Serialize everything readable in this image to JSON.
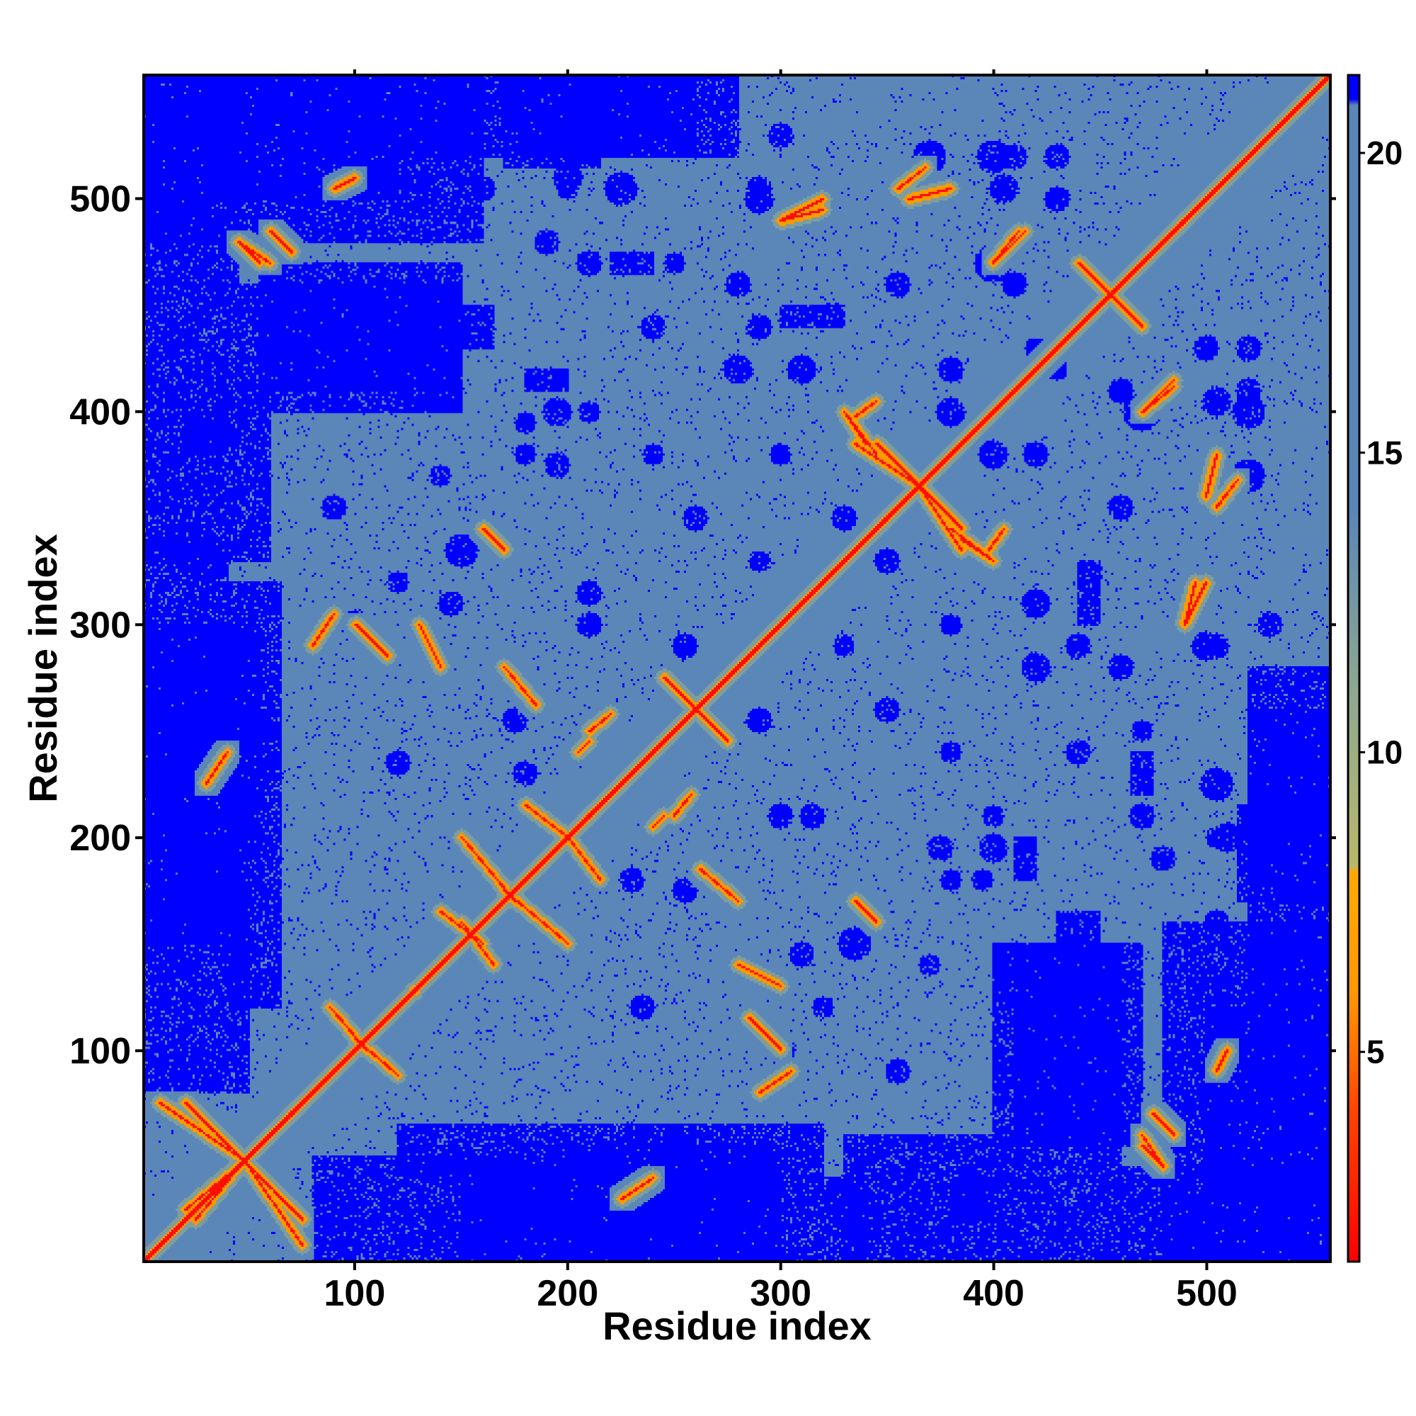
{
  "chart_data": {
    "type": "heatmap",
    "title": "",
    "xlabel": "Residue index",
    "ylabel": "Residue index",
    "xlim": [
      1,
      558
    ],
    "ylim": [
      1,
      558
    ],
    "x_ticks": [
      100,
      200,
      300,
      400,
      500
    ],
    "y_ticks": [
      100,
      200,
      300,
      400,
      500
    ],
    "x_minor_ticks_top": [
      100,
      200,
      300,
      400,
      500
    ],
    "y_minor_ticks_right": [
      100,
      200,
      300,
      400,
      500
    ],
    "grid": false,
    "symmetric": true,
    "colorbar": {
      "position": "right",
      "range": [
        1.5,
        21.3
      ],
      "ticks": [
        5,
        10,
        15,
        20
      ],
      "stops": [
        {
          "value": 1.5,
          "color": "#ff0000"
        },
        {
          "value": 4.0,
          "color": "#ff4400"
        },
        {
          "value": 6.0,
          "color": "#ff9900"
        },
        {
          "value": 8.0,
          "color": "#ffaa00"
        },
        {
          "value": 8.1,
          "color": "#b8b86b"
        },
        {
          "value": 11.0,
          "color": "#8fa890"
        },
        {
          "value": 14.0,
          "color": "#5b86b8"
        },
        {
          "value": 20.8,
          "color": "#5b86b8"
        },
        {
          "value": 20.9,
          "color": "#0000ff"
        },
        {
          "value": 21.3,
          "color": "#0000ff"
        }
      ]
    },
    "value_classes": {
      "diagonal_contact": 2,
      "near_contact": 6,
      "intermediate": 12,
      "background": 17,
      "far": 21
    },
    "contact_segments": [
      [
        5,
        5,
        558,
        558
      ],
      [
        48,
        48,
        60,
        35
      ],
      [
        48,
        48,
        20,
        75
      ],
      [
        48,
        48,
        25,
        20
      ],
      [
        48,
        48,
        75,
        8
      ],
      [
        100,
        105,
        120,
        88
      ],
      [
        150,
        160,
        165,
        140
      ],
      [
        150,
        200,
        175,
        170
      ],
      [
        200,
        200,
        215,
        180
      ],
      [
        210,
        250,
        220,
        258
      ],
      [
        260,
        260,
        275,
        245
      ],
      [
        245,
        210,
        240,
        205
      ],
      [
        170,
        280,
        185,
        262
      ],
      [
        160,
        345,
        170,
        335
      ],
      [
        365,
        365,
        385,
        335
      ],
      [
        365,
        365,
        345,
        385
      ],
      [
        345,
        405,
        335,
        398
      ],
      [
        380,
        345,
        400,
        330
      ],
      [
        400,
        470,
        415,
        485
      ],
      [
        455,
        455,
        440,
        470
      ],
      [
        455,
        455,
        470,
        440
      ],
      [
        470,
        400,
        485,
        412
      ],
      [
        490,
        300,
        500,
        320
      ],
      [
        505,
        355,
        515,
        368
      ],
      [
        478,
        48,
        470,
        60
      ],
      [
        70,
        475,
        60,
        485
      ],
      [
        55,
        470,
        45,
        480
      ],
      [
        300,
        490,
        320,
        495
      ],
      [
        380,
        505,
        360,
        500
      ],
      [
        100,
        510,
        90,
        505
      ],
      [
        225,
        30,
        240,
        40
      ],
      [
        305,
        90,
        290,
        80
      ],
      [
        280,
        140,
        300,
        130
      ],
      [
        100,
        300,
        115,
        285
      ],
      [
        330,
        400,
        340,
        385
      ]
    ],
    "far_regions": [
      [
        1,
        480,
        80,
        558
      ],
      [
        80,
        480,
        160,
        558
      ],
      [
        55,
        400,
        150,
        470
      ],
      [
        200,
        520,
        280,
        558
      ],
      [
        1,
        150,
        40,
        340
      ],
      [
        40,
        120,
        65,
        320
      ],
      [
        80,
        1,
        190,
        50
      ],
      [
        190,
        1,
        300,
        55
      ],
      [
        330,
        1,
        410,
        60
      ],
      [
        410,
        1,
        460,
        100
      ],
      [
        410,
        100,
        460,
        150
      ],
      [
        460,
        1,
        558,
        45
      ],
      [
        500,
        30,
        558,
        120
      ],
      [
        520,
        120,
        558,
        260
      ],
      [
        515,
        170,
        558,
        215
      ],
      [
        300,
        440,
        330,
        450
      ],
      [
        220,
        465,
        240,
        475
      ],
      [
        130,
        400,
        150,
        410
      ],
      [
        180,
        410,
        200,
        420
      ],
      [
        20,
        160,
        45,
        200
      ],
      [
        270,
        35,
        300,
        45
      ],
      [
        240,
        10,
        260,
        60
      ],
      [
        430,
        150,
        450,
        165
      ],
      [
        380,
        20,
        400,
        40
      ]
    ],
    "far_blobs": [
      [
        315,
        210,
        6
      ],
      [
        335,
        150,
        8
      ],
      [
        300,
        100,
        7
      ],
      [
        255,
        290,
        6
      ],
      [
        210,
        300,
        6
      ],
      [
        195,
        400,
        7
      ],
      [
        210,
        400,
        5
      ],
      [
        280,
        420,
        7
      ],
      [
        280,
        460,
        6
      ],
      [
        400,
        470,
        9
      ],
      [
        400,
        520,
        8
      ],
      [
        430,
        500,
        6
      ],
      [
        430,
        520,
        6
      ],
      [
        380,
        400,
        7
      ],
      [
        380,
        420,
        6
      ],
      [
        420,
        310,
        7
      ],
      [
        460,
        355,
        6
      ],
      [
        440,
        290,
        6
      ],
      [
        500,
        290,
        7
      ],
      [
        530,
        300,
        6
      ],
      [
        520,
        370,
        8
      ],
      [
        520,
        410,
        6
      ],
      [
        460,
        410,
        5
      ],
      [
        480,
        190,
        6
      ],
      [
        510,
        200,
        7
      ],
      [
        530,
        200,
        5
      ],
      [
        440,
        240,
        6
      ],
      [
        470,
        210,
        6
      ],
      [
        350,
        260,
        6
      ],
      [
        330,
        290,
        5
      ],
      [
        375,
        195,
        6
      ],
      [
        395,
        180,
        5
      ],
      [
        310,
        145,
        6
      ],
      [
        320,
        120,
        5
      ],
      [
        255,
        175,
        6
      ],
      [
        240,
        380,
        5
      ],
      [
        160,
        505,
        6
      ],
      [
        200,
        505,
        5
      ],
      [
        225,
        505,
        8
      ],
      [
        290,
        505,
        6
      ],
      [
        405,
        505,
        7
      ],
      [
        410,
        460,
        6
      ],
      [
        430,
        420,
        5
      ],
      [
        300,
        380,
        5
      ],
      [
        350,
        330,
        6
      ],
      [
        250,
        470,
        5
      ],
      [
        120,
        235,
        6
      ],
      [
        140,
        370,
        5
      ],
      [
        180,
        380,
        5
      ],
      [
        90,
        355,
        6
      ],
      [
        230,
        180,
        6
      ],
      [
        380,
        300,
        5
      ]
    ]
  }
}
